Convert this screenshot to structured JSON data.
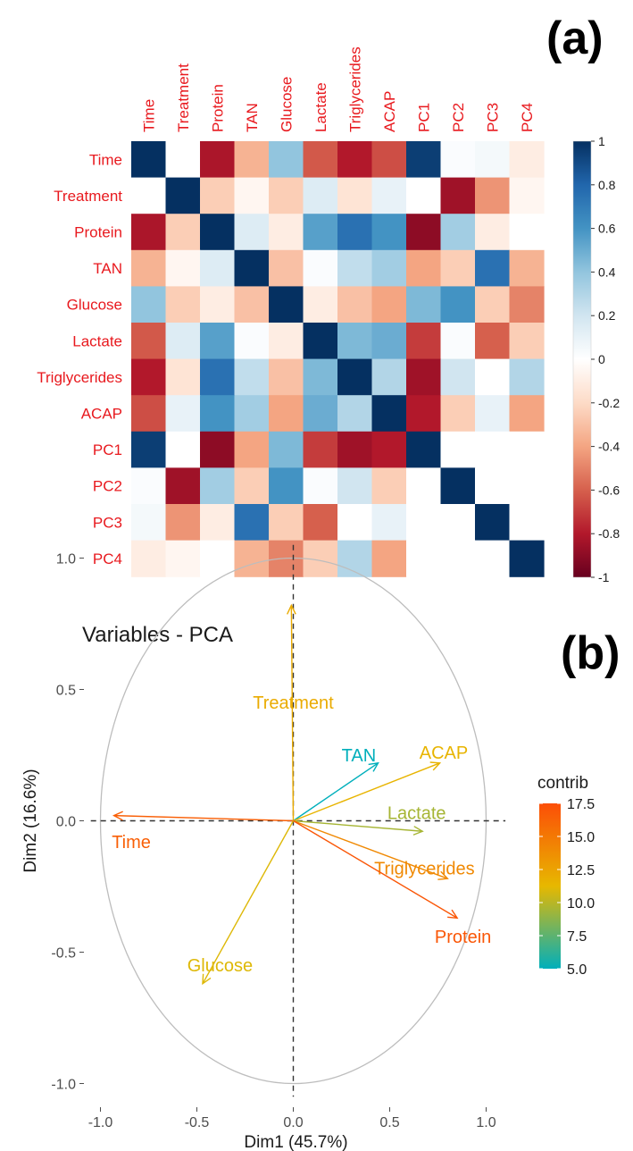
{
  "chart_data": [
    {
      "panel": "(a)",
      "type": "heatmap",
      "title": "",
      "variables": [
        "Time",
        "Treatment",
        "Protein",
        "TAN",
        "Glucose",
        "Lactate",
        "Triglycerides",
        "ACAP",
        "PC1",
        "PC2",
        "PC3",
        "PC4"
      ],
      "matrix": [
        [
          1.0,
          0.0,
          -0.82,
          -0.35,
          0.4,
          -0.62,
          -0.8,
          -0.65,
          0.95,
          0.02,
          0.05,
          -0.1
        ],
        [
          0.0,
          1.0,
          -0.25,
          -0.05,
          -0.25,
          0.15,
          -0.15,
          0.1,
          0.0,
          -0.85,
          -0.45,
          -0.05
        ],
        [
          -0.82,
          -0.25,
          1.0,
          0.15,
          -0.1,
          0.55,
          0.75,
          0.6,
          -0.9,
          0.35,
          -0.1,
          0.0
        ],
        [
          -0.35,
          -0.05,
          0.15,
          1.0,
          -0.3,
          0.02,
          0.25,
          0.35,
          -0.4,
          -0.25,
          0.75,
          -0.35
        ],
        [
          0.4,
          -0.25,
          -0.1,
          -0.3,
          1.0,
          -0.1,
          -0.3,
          -0.4,
          0.45,
          0.6,
          -0.25,
          -0.5
        ],
        [
          -0.62,
          0.15,
          0.55,
          0.02,
          -0.1,
          1.0,
          0.45,
          0.5,
          -0.7,
          0.02,
          -0.6,
          -0.25
        ],
        [
          -0.8,
          -0.15,
          0.75,
          0.25,
          -0.3,
          0.45,
          1.0,
          0.3,
          -0.85,
          0.2,
          0.0,
          0.3
        ],
        [
          -0.65,
          0.1,
          0.6,
          0.35,
          -0.4,
          0.5,
          0.3,
          1.0,
          -0.8,
          -0.25,
          0.1,
          -0.4
        ],
        [
          0.95,
          0.0,
          -0.9,
          -0.4,
          0.45,
          -0.7,
          -0.85,
          -0.8,
          1.0,
          0.0,
          0.0,
          0.0
        ],
        [
          0.02,
          -0.85,
          0.35,
          -0.25,
          0.6,
          0.02,
          0.2,
          -0.25,
          0.0,
          1.0,
          0.0,
          0.0
        ],
        [
          0.05,
          -0.45,
          -0.1,
          0.75,
          -0.25,
          -0.6,
          0.0,
          0.1,
          0.0,
          0.0,
          1.0,
          0.0
        ],
        [
          -0.1,
          -0.05,
          0.0,
          -0.35,
          -0.5,
          -0.25,
          0.3,
          -0.4,
          0.0,
          0.0,
          0.0,
          1.0
        ]
      ],
      "colorbar": {
        "range": [
          -1,
          1
        ],
        "ticks": [
          "1",
          "0.8",
          "0.6",
          "0.4",
          "0.2",
          "0",
          "-0.2",
          "-0.4",
          "-0.6",
          "-0.8",
          "-1"
        ],
        "colors": {
          "neg": "#67001f",
          "mid": "#ffffff",
          "pos": "#053061"
        }
      }
    },
    {
      "panel": "(b)",
      "type": "scatter",
      "title": "Variables - PCA",
      "xlabel": "Dim1 (45.7%)",
      "ylabel": "Dim2 (16.6%)",
      "xlim": [
        -1.05,
        1.1
      ],
      "ylim": [
        -1.05,
        1.05
      ],
      "xticks": [
        "-1.0",
        "-0.5",
        "0.0",
        "0.5",
        "1.0"
      ],
      "yticks": [
        "1.0",
        "0.5",
        "0.0",
        "-0.5",
        "-1.0"
      ],
      "vectors": [
        {
          "name": "Treatment",
          "x": -0.01,
          "y": 0.82,
          "contrib": 12.0
        },
        {
          "name": "TAN",
          "x": 0.44,
          "y": 0.22,
          "contrib": 5.0
        },
        {
          "name": "ACAP",
          "x": 0.76,
          "y": 0.22,
          "contrib": 11.5
        },
        {
          "name": "Lactate",
          "x": 0.67,
          "y": -0.04,
          "contrib": 9.5
        },
        {
          "name": "Triglycerides",
          "x": 0.8,
          "y": -0.22,
          "contrib": 14.0
        },
        {
          "name": "Protein",
          "x": 0.85,
          "y": -0.37,
          "contrib": 17.0
        },
        {
          "name": "Time",
          "x": -0.93,
          "y": 0.02,
          "contrib": 16.5
        },
        {
          "name": "Glucose",
          "x": -0.47,
          "y": -0.62,
          "contrib": 11.0
        }
      ],
      "legend": {
        "title": "contrib",
        "ticks": [
          "17.5",
          "15.0",
          "12.5",
          "10.0",
          "7.5",
          "5.0"
        ],
        "range": [
          5.0,
          17.5
        ],
        "colors": [
          "#00AFBB",
          "#E7B800",
          "#FC4E07"
        ]
      }
    }
  ],
  "panel_tags": {
    "a": "(a)",
    "b": "(b)"
  }
}
